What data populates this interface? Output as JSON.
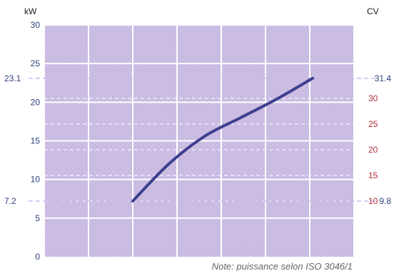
{
  "chart_data": {
    "type": "line",
    "y_unit_left": "kW",
    "y_unit_right": "CV",
    "ylim_left": [
      0,
      30
    ],
    "yticks_left": [
      0,
      5,
      10,
      15,
      20,
      25,
      30
    ],
    "yticks_right": [
      10,
      15,
      20,
      25,
      30
    ],
    "grid": true,
    "series": [
      {
        "values": [
          7.2,
          12.0,
          15.6,
          18.0,
          20.4,
          23.1
        ]
      }
    ],
    "markers": [
      {
        "left_label": "23.1",
        "right_label": "31.4",
        "value": 23.1
      },
      {
        "left_label": "7.2",
        "right_label": "9.8",
        "value": 7.2
      }
    ],
    "note": "Note: puissance selon ISO 3046/1",
    "colors": {
      "plot_bg": "#cdbfe4",
      "line": "#3d3f8f",
      "grid": "#ffffff",
      "marker_line": "#c9b8ef",
      "left_ticks": "#2d3f7a",
      "right_ticks": "#b0303a"
    }
  }
}
